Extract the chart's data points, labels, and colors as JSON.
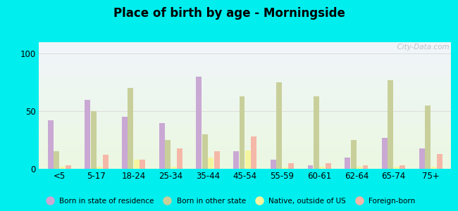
{
  "title": "Place of birth by age - Morningside",
  "categories": [
    "<5",
    "5-17",
    "18-24",
    "25-34",
    "35-44",
    "45-54",
    "55-59",
    "60-61",
    "62-64",
    "65-74",
    "75+"
  ],
  "series": {
    "Born in state of residence": [
      42,
      60,
      45,
      40,
      80,
      15,
      8,
      3,
      10,
      27,
      18
    ],
    "Born in other state": [
      15,
      50,
      70,
      25,
      30,
      63,
      75,
      63,
      25,
      77,
      55
    ],
    "Native, outside of US": [
      2,
      2,
      8,
      2,
      10,
      16,
      1,
      2,
      2,
      2,
      2
    ],
    "Foreign-born": [
      3,
      12,
      8,
      18,
      15,
      28,
      5,
      5,
      3,
      3,
      13
    ]
  },
  "colors": {
    "Born in state of residence": "#c9a8d4",
    "Born in other state": "#c8cf9a",
    "Native, outside of US": "#f5f5a0",
    "Foreign-born": "#f5b8a8"
  },
  "ylim": [
    0,
    110
  ],
  "yticks": [
    0,
    50,
    100
  ],
  "outer_background": "#00eeee",
  "grid_color": "#dddddd",
  "watermark": "  City-Data.com"
}
